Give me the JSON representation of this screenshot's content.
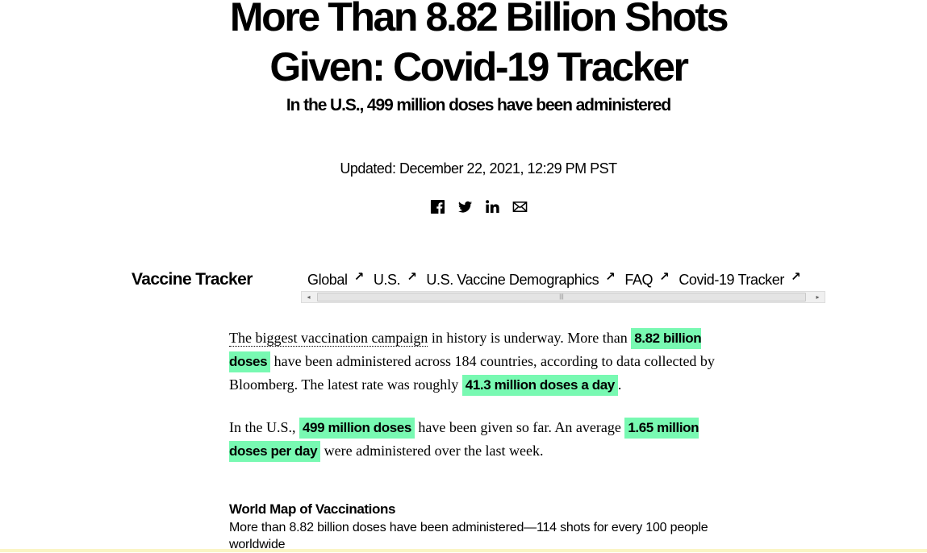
{
  "headline": {
    "line1": "More Than 8.82 Billion Shots",
    "line2": "Given: Covid-19 Tracker"
  },
  "dek": "In the U.S., 499 million doses have been administered",
  "updated": "Updated: December 22, 2021, 12:29 PM PST",
  "share": [
    {
      "icon": "facebook-icon"
    },
    {
      "icon": "twitter-icon"
    },
    {
      "icon": "linkedin-icon"
    },
    {
      "icon": "email-icon"
    }
  ],
  "tracker_nav": {
    "title": "Vaccine Tracker",
    "links": [
      {
        "label": "Global",
        "arrow": "↗"
      },
      {
        "label": "U.S.",
        "arrow": "↗"
      },
      {
        "label": "U.S. Vaccine Demographics",
        "arrow": "↗"
      },
      {
        "label": "FAQ",
        "arrow": "↗"
      },
      {
        "label": "Covid-19 Tracker",
        "arrow": "↗"
      }
    ],
    "scrollbar": {
      "left_glyph": "◂",
      "right_glyph": "▸",
      "grip": "|||"
    }
  },
  "intro": {
    "p1": {
      "link": "The biggest vaccination campaign",
      "t1": " in history is underway. More than ",
      "h1": "8.82 billion doses",
      "t2": " have been administered across 184 countries, according to data collected by Bloomberg. The latest rate was roughly ",
      "h2": "41.3 million doses a day",
      "t3": "."
    },
    "p2": {
      "t1": "In the U.S., ",
      "h1": "499 million doses",
      "t2": " have been given so far. An average ",
      "h2": "1.65 million doses per day",
      "t3": " were administered over the last week."
    }
  },
  "world_map": {
    "title": "World Map of Vaccinations",
    "description": "More than 8.82 billion doses have been administered—114 shots for every 100 people worldwide"
  },
  "colors": {
    "highlight": "#78f9b2",
    "bottom_strip": "#faf5c4"
  }
}
